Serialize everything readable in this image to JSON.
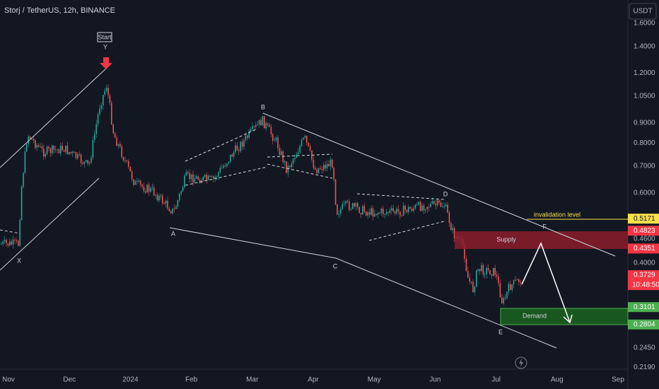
{
  "header": {
    "symbol": "Storj / TetherUS, 12h, BINANCE",
    "currency": "USDT"
  },
  "price_axis": [
    "1.6000",
    "1.4000",
    "1.2000",
    "1.0500",
    "0.9000",
    "0.8000",
    "0.7000",
    "0.6000",
    "0.4600",
    "0.4000",
    "0.2450",
    "0.2190"
  ],
  "price_tags": [
    {
      "label": "0.5171",
      "color": "#f7e04a",
      "text_color": "#131722"
    },
    {
      "label": "0.4823",
      "color": "#f23645",
      "text_color": "#ffffff"
    },
    {
      "label": "0.4351",
      "color": "#f23645",
      "text_color": "#ffffff"
    },
    {
      "label": "0.3729",
      "color": "#f23645",
      "text_color": "#ffffff"
    },
    {
      "label": "0.3101",
      "color": "#4caf50",
      "text_color": "#ffffff"
    },
    {
      "label": "0.2804",
      "color": "#4caf50",
      "text_color": "#ffffff"
    }
  ],
  "countdown": "10:48:50",
  "time_axis": [
    "Nov",
    "Dec",
    "2024",
    "Feb",
    "Mar",
    "Apr",
    "May",
    "Jun",
    "Jul",
    "Aug",
    "Sep"
  ],
  "annotations": {
    "start": "Start",
    "y": "Y",
    "x": "X",
    "a": "A",
    "b": "B",
    "c": "C",
    "d": "D",
    "e": "E",
    "f": "F",
    "supply": "Supply",
    "demand": "Demand",
    "invalidation": "invalidation level"
  }
}
